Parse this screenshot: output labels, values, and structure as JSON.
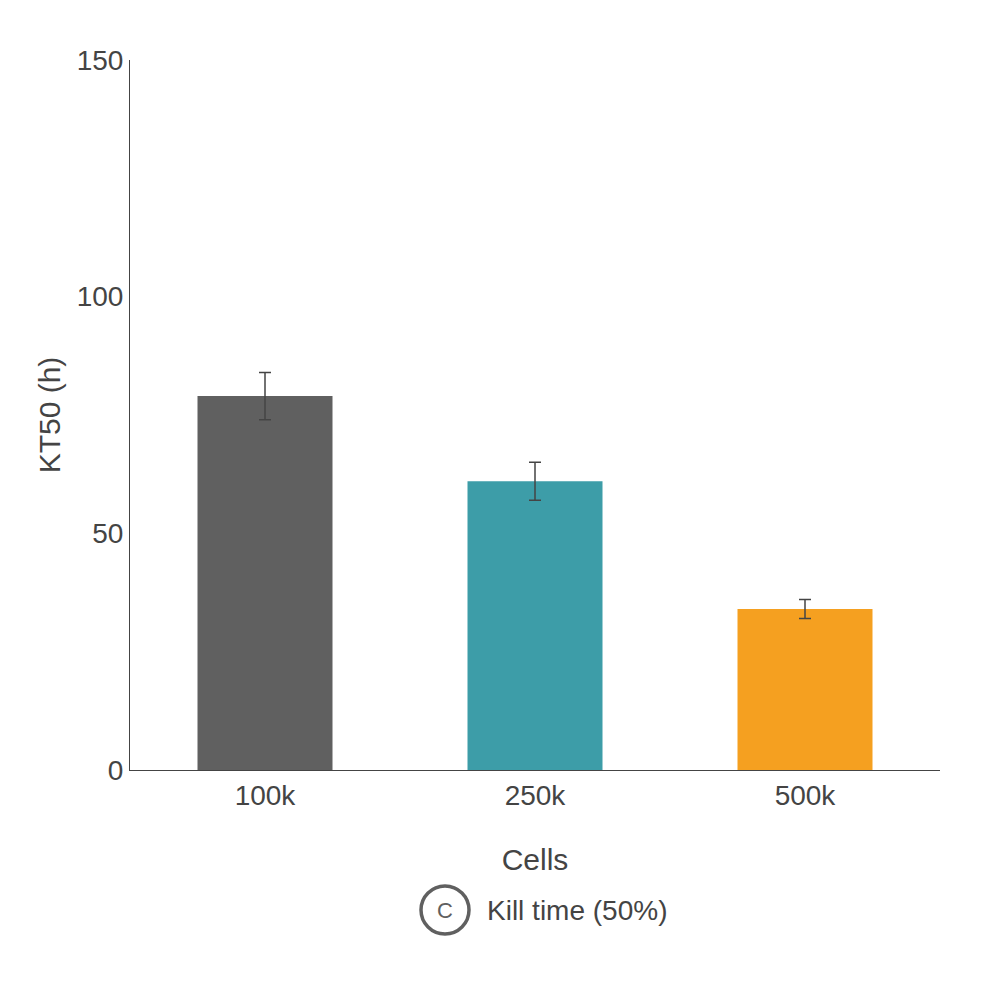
{
  "chart_data": {
    "type": "bar",
    "categories": [
      "100k",
      "250k",
      "500k"
    ],
    "values": [
      79,
      61,
      34
    ],
    "errors": [
      5,
      4,
      2
    ],
    "colors": [
      "#606060",
      "#3d9da8",
      "#f5a020"
    ],
    "xlabel": "Cells",
    "ylabel": "KT50 (h)",
    "ylim": [
      0,
      150
    ],
    "yticks": [
      0,
      50,
      100,
      150
    ],
    "grid": false,
    "annotations": [
      {
        "text": "C",
        "color": "#606060"
      },
      {
        "text": "Kill time (50%)"
      }
    ]
  }
}
